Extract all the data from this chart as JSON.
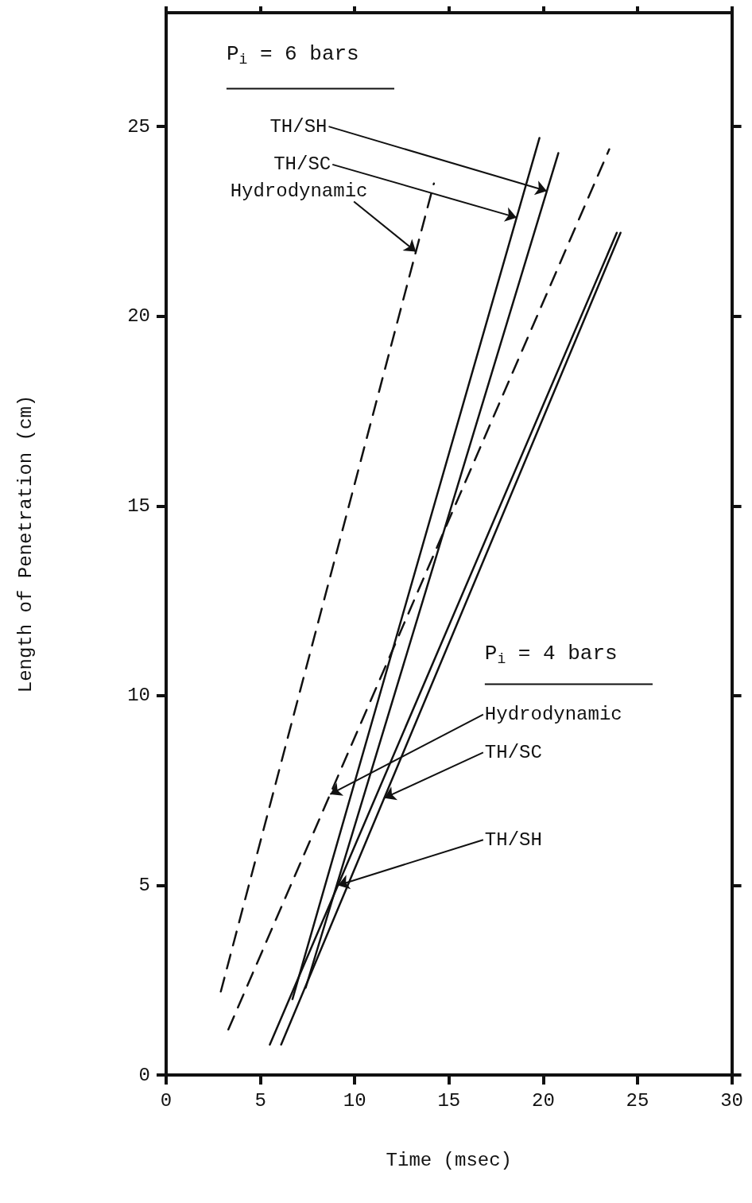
{
  "chart_data": {
    "type": "line",
    "xlabel": "Time (msec)",
    "ylabel": "Length of Penetration (cm)",
    "xlim": [
      0,
      30
    ],
    "xticks": [
      0,
      5,
      10,
      15,
      20,
      25,
      30
    ],
    "ylim": [
      0,
      28
    ],
    "yticks": [
      0,
      5,
      10,
      15,
      20,
      25
    ],
    "grid": false,
    "marker": "none",
    "annotations": [
      "P$_{i}$ = 6 bars",
      {
        "text": "TH/SH",
        "x": 20.19,
        "y": 23.3
      },
      {
        "text": "TH/SC",
        "x": 18.59,
        "y": 22.6
      },
      {
        "text": "Hydrodynamic",
        "x": 13.25,
        "y": 21.7
      },
      "P$_{i}$ = 4 bars",
      {
        "text": "Hydrodynamic",
        "x": 8.7,
        "y": 7.4
      },
      {
        "text": "TH/SC",
        "x": 11.57,
        "y": 7.3
      },
      {
        "text": "TH/SH",
        "x": 9.11,
        "y": 5.0
      }
    ],
    "series": [
      {
        "color": "#111111",
        "line_style": "dashed",
        "x": [
          2.9,
          14.2
        ],
        "values": [
          2.2,
          23.5
        ]
      },
      {
        "color": "#111111",
        "line_style": "solid",
        "x": [
          6.7,
          19.8
        ],
        "values": [
          2.0,
          24.7
        ]
      },
      {
        "color": "#111111",
        "line_style": "solid",
        "x": [
          7.4,
          20.8
        ],
        "values": [
          2.3,
          24.3
        ]
      },
      {
        "color": "#111111",
        "line_style": "dashed",
        "x": [
          3.3,
          23.5
        ],
        "values": [
          1.2,
          24.4
        ]
      },
      {
        "color": "#111111",
        "line_style": "solid",
        "x": [
          6.1,
          24.1
        ],
        "values": [
          0.8,
          22.2
        ]
      },
      {
        "color": "#111111",
        "line_style": "solid",
        "x": [
          5.5,
          23.9
        ],
        "values": [
          0.8,
          22.2
        ]
      }
    ]
  }
}
